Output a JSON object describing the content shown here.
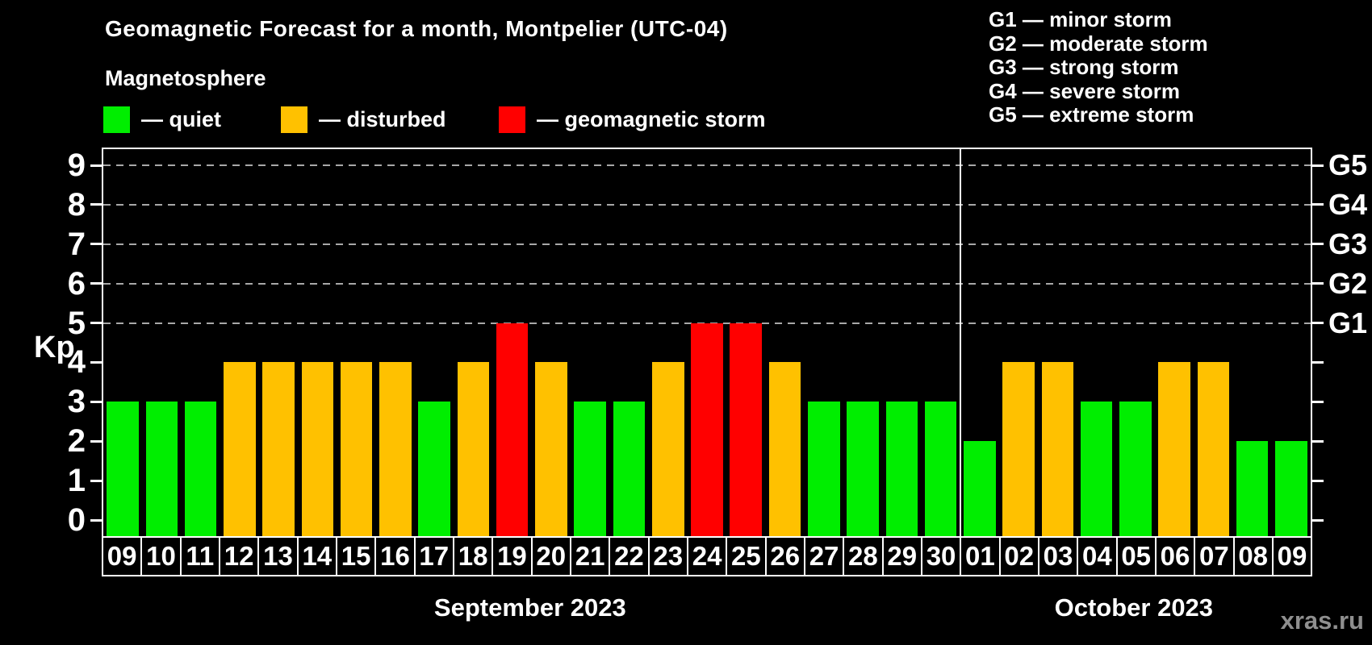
{
  "title": "Geomagnetic Forecast for a month, Montpelier (UTC-04)",
  "subtitle": "Magnetosphere",
  "legend": {
    "items": [
      {
        "name": "quiet",
        "label": "— quiet",
        "color": "#00ee00"
      },
      {
        "name": "disturbed",
        "label": "— disturbed",
        "color": "#ffc100"
      },
      {
        "name": "storm",
        "label": "— geomagnetic storm",
        "color": "#ff0000"
      }
    ]
  },
  "g_legend": [
    "G1 — minor storm",
    "G2 — moderate storm",
    "G3 — strong storm",
    "G4 — severe storm",
    "G5 — extreme storm"
  ],
  "axes": {
    "y_label": "Kp",
    "y_ticks": [
      0,
      1,
      2,
      3,
      4,
      5,
      6,
      7,
      8,
      9
    ],
    "right_labels": [
      {
        "value": 5,
        "label": "G1"
      },
      {
        "value": 6,
        "label": "G2"
      },
      {
        "value": 7,
        "label": "G3"
      },
      {
        "value": 8,
        "label": "G4"
      },
      {
        "value": 9,
        "label": "G5"
      }
    ]
  },
  "watermark": "xras.ru",
  "chart_data": {
    "type": "bar",
    "title": "Geomagnetic Forecast for a month, Montpelier (UTC-04)",
    "ylabel": "Kp",
    "ylim": [
      0,
      9
    ],
    "grid": "dashed horizontal at Kp 5-9 (G1-G5)",
    "legend_position": "top-left",
    "gridlines_at": [
      5,
      6,
      7,
      8,
      9
    ],
    "state_colors": {
      "quiet": "#00ee00",
      "disturbed": "#ffc100",
      "storm": "#ff0000"
    },
    "groups": [
      {
        "label": "September 2023",
        "days": [
          "09",
          "10",
          "11",
          "12",
          "13",
          "14",
          "15",
          "16",
          "17",
          "18",
          "19",
          "20",
          "21",
          "22",
          "23",
          "24",
          "25",
          "26",
          "27",
          "28",
          "29",
          "30"
        ],
        "values": [
          3,
          3,
          3,
          4,
          4,
          4,
          4,
          4,
          3,
          4,
          5,
          4,
          3,
          3,
          4,
          5,
          5,
          4,
          3,
          3,
          3,
          3
        ],
        "states": [
          "quiet",
          "quiet",
          "quiet",
          "disturbed",
          "disturbed",
          "disturbed",
          "disturbed",
          "disturbed",
          "quiet",
          "disturbed",
          "storm",
          "disturbed",
          "quiet",
          "quiet",
          "disturbed",
          "storm",
          "storm",
          "disturbed",
          "quiet",
          "quiet",
          "quiet",
          "quiet"
        ]
      },
      {
        "label": "October 2023",
        "days": [
          "01",
          "02",
          "03",
          "04",
          "05",
          "06",
          "07",
          "08",
          "09"
        ],
        "values": [
          2,
          4,
          4,
          3,
          3,
          4,
          4,
          2,
          2
        ],
        "states": [
          "quiet",
          "disturbed",
          "disturbed",
          "quiet",
          "quiet",
          "disturbed",
          "disturbed",
          "quiet",
          "quiet"
        ]
      }
    ]
  }
}
